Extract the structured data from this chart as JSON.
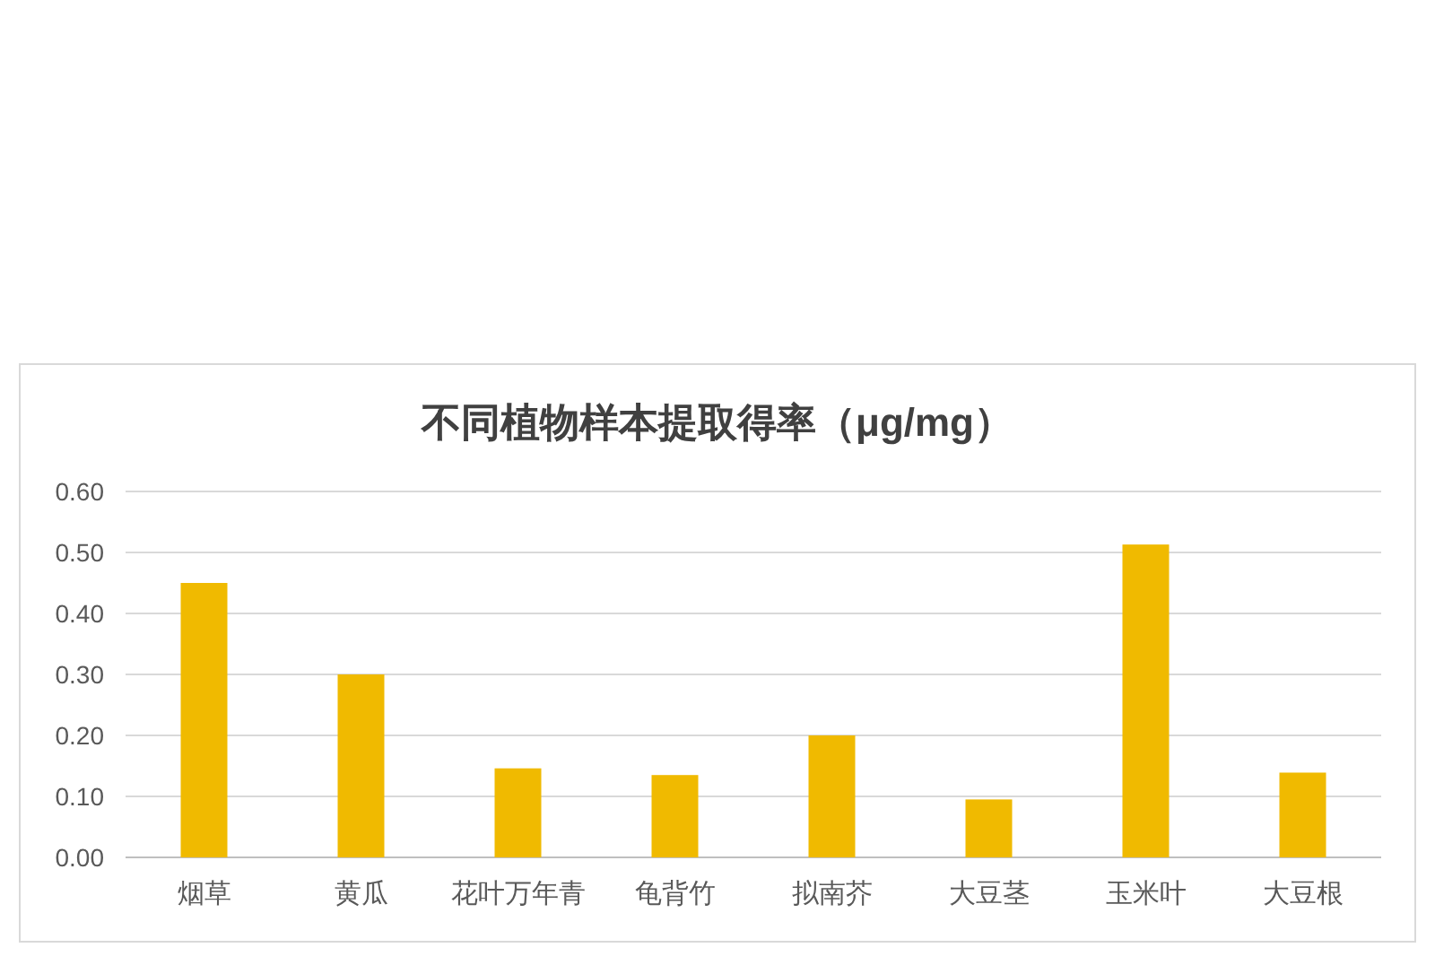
{
  "chart_data": {
    "type": "bar",
    "title": "不同植物样本提取得率（μg/mg）",
    "categories": [
      "烟草",
      "黄瓜",
      "花叶万年青",
      "龟背竹",
      "拟南芥",
      "大豆茎",
      "玉米叶",
      "大豆根"
    ],
    "values": [
      0.45,
      0.3,
      0.146,
      0.135,
      0.2,
      0.095,
      0.513,
      0.139
    ],
    "color": "#f0ba00",
    "ylim": [
      0,
      0.6
    ],
    "yticks": [
      {
        "value": 0,
        "label": "0.00"
      },
      {
        "value": 0.1,
        "label": "0.10"
      },
      {
        "value": 0.2,
        "label": "0.20"
      },
      {
        "value": 0.3,
        "label": "0.30"
      },
      {
        "value": 0.4,
        "label": "0.40"
      },
      {
        "value": 0.5,
        "label": "0.50"
      },
      {
        "value": 0.6,
        "label": "0.60"
      }
    ],
    "grid": "y"
  }
}
